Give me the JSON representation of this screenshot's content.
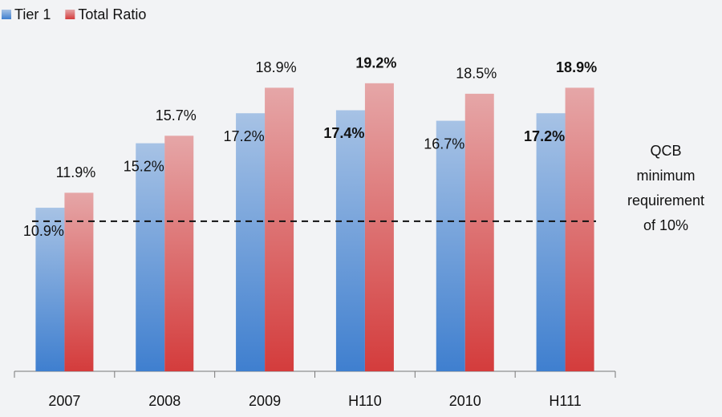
{
  "chart_data": {
    "type": "bar",
    "categories": [
      "2007",
      "2008",
      "2009",
      "H110",
      "2010",
      "H111"
    ],
    "series": [
      {
        "name": "Tier 1",
        "color": "#3f7fcf",
        "values": [
          10.9,
          15.2,
          17.2,
          17.4,
          16.7,
          17.2
        ],
        "value_labels": [
          "10.9%",
          "15.2%",
          "17.2%",
          "17.4%",
          "16.7%",
          "17.2%"
        ],
        "bold": [
          false,
          false,
          false,
          true,
          false,
          true
        ]
      },
      {
        "name": "Total Ratio",
        "color": "#d43c3c",
        "values": [
          11.9,
          15.7,
          18.9,
          19.2,
          18.5,
          18.9
        ],
        "value_labels": [
          "11.9%",
          "15.7%",
          "18.9%",
          "19.2%",
          "18.5%",
          "18.9%"
        ],
        "bold": [
          false,
          false,
          false,
          true,
          false,
          true
        ]
      }
    ],
    "reference_line": {
      "value": 10,
      "label_lines": [
        "QCB",
        "minimum",
        "requirement",
        "of 10%"
      ]
    },
    "ylim": [
      0,
      24
    ],
    "legend": "top-left"
  }
}
